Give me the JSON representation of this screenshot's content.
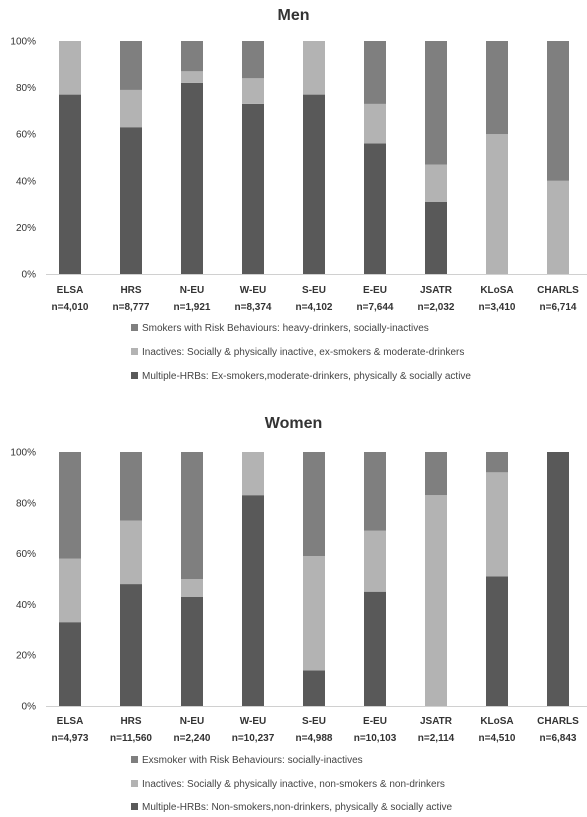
{
  "colors": {
    "dark": "#595959",
    "light": "#b3b3b3",
    "mid": "#7f7f7f"
  },
  "chart_data": [
    {
      "type": "bar",
      "stacked": true,
      "title": "Men",
      "yticks": [
        "0%",
        "20%",
        "40%",
        "60%",
        "80%",
        "100%"
      ],
      "ylim": [
        0,
        100
      ],
      "categories": [
        "ELSA",
        "HRS",
        "N-EU",
        "W-EU",
        "S-EU",
        "E-EU",
        "JSATR",
        "KLoSA",
        "CHARLS"
      ],
      "sample_sizes": [
        "n=4,010",
        "n=8,777",
        "n=1,921",
        "n=8,374",
        "n=4,102",
        "n=7,644",
        "n=2,032",
        "n=3,410",
        "n=6,714"
      ],
      "grid": false,
      "legend_position": "bottom",
      "series": [
        {
          "name": "Multiple-HRBs: Ex-smokers,moderate-drinkers, physically & socially active",
          "color_key": "dark",
          "values": [
            77,
            63,
            82,
            73,
            77,
            56,
            31,
            0,
            0
          ]
        },
        {
          "name": "Inactives: Socially & physically inactive, ex-smokers & moderate-drinkers",
          "color_key": "light",
          "values": [
            23,
            16,
            5,
            11,
            23,
            17,
            16,
            60,
            40
          ]
        },
        {
          "name": "Smokers with Risk Behaviours: heavy-drinkers, socially-inactives",
          "color_key": "mid",
          "values": [
            0,
            21,
            13,
            16,
            0,
            27,
            53,
            40,
            60
          ]
        }
      ]
    },
    {
      "type": "bar",
      "stacked": true,
      "title": "Women",
      "yticks": [
        "0%",
        "20%",
        "40%",
        "60%",
        "80%",
        "100%"
      ],
      "ylim": [
        0,
        100
      ],
      "categories": [
        "ELSA",
        "HRS",
        "N-EU",
        "W-EU",
        "S-EU",
        "E-EU",
        "JSATR",
        "KLoSA",
        "CHARLS"
      ],
      "sample_sizes": [
        "n=4,973",
        "n=11,560",
        "n=2,240",
        "n=10,237",
        "n=4,988",
        "n=10,103",
        "n=2,114",
        "n=4,510",
        "n=6,843"
      ],
      "grid": false,
      "legend_position": "bottom",
      "series": [
        {
          "name": "Multiple-HRBs: Non-smokers,non-drinkers, physically & socially active",
          "color_key": "dark",
          "values": [
            33,
            48,
            43,
            83,
            14,
            45,
            0,
            51,
            100
          ]
        },
        {
          "name": "Inactives: Socially & physically inactive, non-smokers & non-drinkers",
          "color_key": "light",
          "values": [
            25,
            25,
            7,
            17,
            45,
            24,
            83,
            41,
            0
          ]
        },
        {
          "name": "Exsmoker with Risk Behaviours:  socially-inactives",
          "color_key": "mid",
          "values": [
            42,
            27,
            50,
            0,
            41,
            31,
            17,
            8,
            0
          ]
        }
      ]
    }
  ]
}
